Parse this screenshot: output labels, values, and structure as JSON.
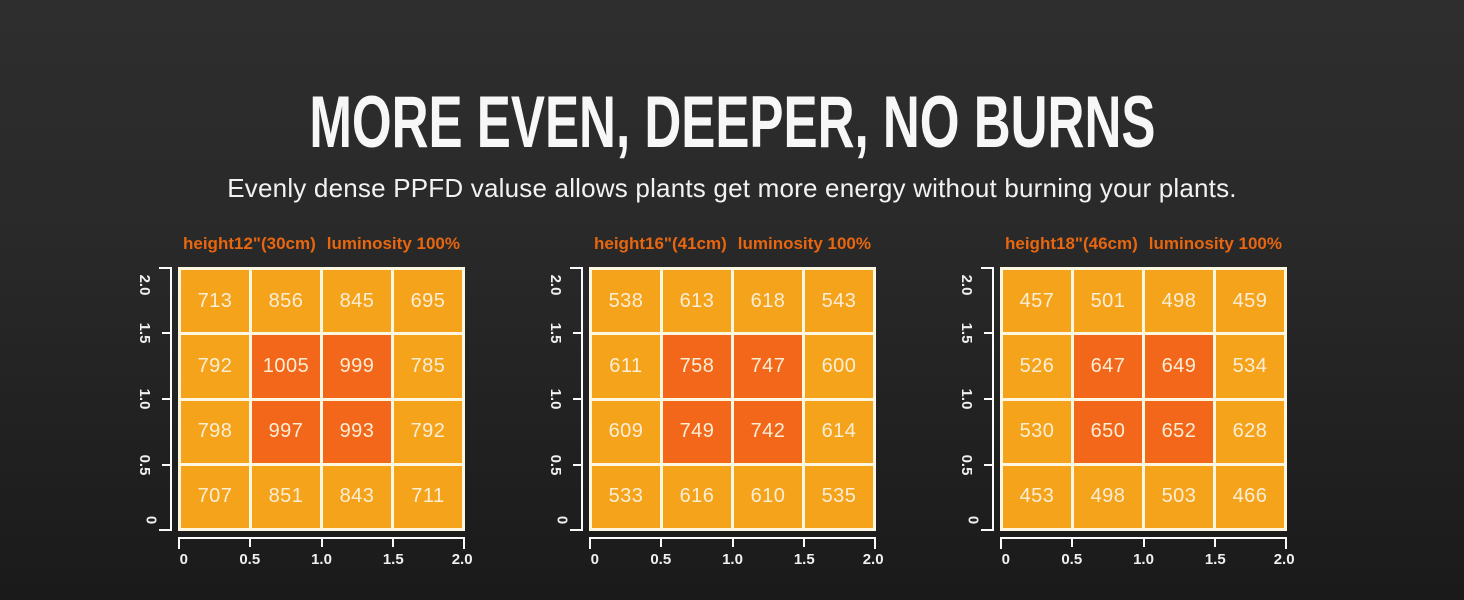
{
  "title": "MORE EVEN, DEEPER, NO BURNS",
  "subtitle": "Evenly dense PPFD valuse allows plants get more energy without burning your plants.",
  "colors": {
    "background_top": "#2e2e2e",
    "background_bottom": "#1a1a1a",
    "cell": "#f6a31c",
    "cell_hot": "#f3671a",
    "grid_line": "#fdf6e0",
    "cell_text": "#faeed6",
    "header_text": "#e7660f",
    "axis": "#fafafa"
  },
  "chart_data": [
    {
      "type": "heatmap",
      "title": "height12\"(30cm) luminosity 100%",
      "height_label": "height12\"(30cm)",
      "luminosity_label": "luminosity 100%",
      "xlim": [
        0,
        2
      ],
      "ylim": [
        0,
        2
      ],
      "x_ticks": [
        "0",
        "0.5",
        "1.0",
        "1.5",
        "2.0"
      ],
      "y_ticks": [
        "2.0",
        "1.5",
        "1.0",
        "0.5",
        "0"
      ],
      "values": [
        [
          713,
          856,
          845,
          695
        ],
        [
          792,
          1005,
          999,
          785
        ],
        [
          798,
          997,
          993,
          792
        ],
        [
          707,
          851,
          843,
          711
        ]
      ],
      "hot_region": "center 2x2"
    },
    {
      "type": "heatmap",
      "title": "height16\"(41cm) luminosity 100%",
      "height_label": "height16\"(41cm)",
      "luminosity_label": "luminosity 100%",
      "xlim": [
        0,
        2
      ],
      "ylim": [
        0,
        2
      ],
      "x_ticks": [
        "0",
        "0.5",
        "1.0",
        "1.5",
        "2.0"
      ],
      "y_ticks": [
        "2.0",
        "1.5",
        "1.0",
        "0.5",
        "0"
      ],
      "values": [
        [
          538,
          613,
          618,
          543
        ],
        [
          611,
          758,
          747,
          600
        ],
        [
          609,
          749,
          742,
          614
        ],
        [
          533,
          616,
          610,
          535
        ]
      ],
      "hot_region": "center 2x2"
    },
    {
      "type": "heatmap",
      "title": "height18\"(46cm) luminosity 100%",
      "height_label": "height18\"(46cm)",
      "luminosity_label": "luminosity 100%",
      "xlim": [
        0,
        2
      ],
      "ylim": [
        0,
        2
      ],
      "x_ticks": [
        "0",
        "0.5",
        "1.0",
        "1.5",
        "2.0"
      ],
      "y_ticks": [
        "2.0",
        "1.5",
        "1.0",
        "0.5",
        "0"
      ],
      "values": [
        [
          457,
          501,
          498,
          459
        ],
        [
          526,
          647,
          649,
          534
        ],
        [
          530,
          650,
          652,
          628
        ],
        [
          453,
          498,
          503,
          466
        ]
      ],
      "hot_region": "center 2x2"
    }
  ]
}
